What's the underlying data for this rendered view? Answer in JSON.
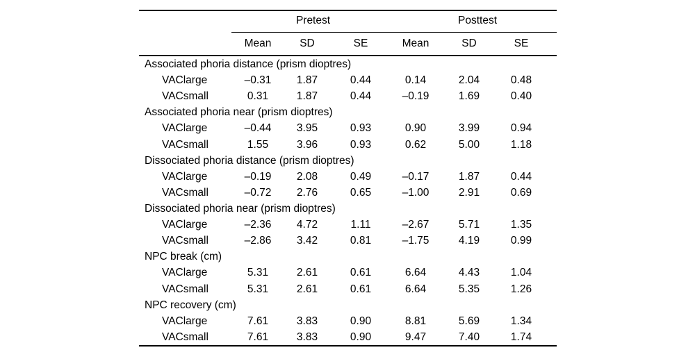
{
  "table": {
    "column_groups": [
      "Pretest",
      "Posttest"
    ],
    "sub_columns": [
      "Mean",
      "SD",
      "SE",
      "Mean",
      "SD",
      "SE"
    ],
    "sections": [
      {
        "header": "Associated phoria distance (prism dioptres)",
        "rows": [
          {
            "label": "VAClarge",
            "values": [
              "–0.31",
              "1.87",
              "0.44",
              "0.14",
              "2.04",
              "0.48"
            ]
          },
          {
            "label": "VACsmall",
            "values": [
              "0.31",
              "1.87",
              "0.44",
              "–0.19",
              "1.69",
              "0.40"
            ]
          }
        ]
      },
      {
        "header": "Associated phoria near (prism dioptres)",
        "rows": [
          {
            "label": "VAClarge",
            "values": [
              "–0.44",
              "3.95",
              "0.93",
              "0.90",
              "3.99",
              "0.94"
            ]
          },
          {
            "label": "VACsmall",
            "values": [
              "1.55",
              "3.96",
              "0.93",
              "0.62",
              "5.00",
              "1.18"
            ]
          }
        ]
      },
      {
        "header": "Dissociated phoria distance (prism dioptres)",
        "rows": [
          {
            "label": "VAClarge",
            "values": [
              "–0.19",
              "2.08",
              "0.49",
              "–0.17",
              "1.87",
              "0.44"
            ]
          },
          {
            "label": "VACsmall",
            "values": [
              "–0.72",
              "2.76",
              "0.65",
              "–1.00",
              "2.91",
              "0.69"
            ]
          }
        ]
      },
      {
        "header": "Dissociated phoria near (prism dioptres)",
        "rows": [
          {
            "label": "VAClarge",
            "values": [
              "–2.36",
              "4.72",
              "1.11",
              "–2.67",
              "5.71",
              "1.35"
            ]
          },
          {
            "label": "VACsmall",
            "values": [
              "–2.86",
              "3.42",
              "0.81",
              "–1.75",
              "4.19",
              "0.99"
            ]
          }
        ]
      },
      {
        "header": "NPC break (cm)",
        "rows": [
          {
            "label": "VAClarge",
            "values": [
              "5.31",
              "2.61",
              "0.61",
              "6.64",
              "4.43",
              "1.04"
            ]
          },
          {
            "label": "VACsmall",
            "values": [
              "5.31",
              "2.61",
              "0.61",
              "6.64",
              "5.35",
              "1.26"
            ]
          }
        ]
      },
      {
        "header": "NPC recovery (cm)",
        "rows": [
          {
            "label": "VAClarge",
            "values": [
              "7.61",
              "3.83",
              "0.90",
              "8.81",
              "5.69",
              "1.34"
            ]
          },
          {
            "label": "VACsmall",
            "values": [
              "7.61",
              "3.83",
              "0.90",
              "9.47",
              "7.40",
              "1.74"
            ]
          }
        ]
      }
    ],
    "colors": {
      "text": "#000000",
      "rule": "#000000",
      "background": "#ffffff"
    }
  }
}
